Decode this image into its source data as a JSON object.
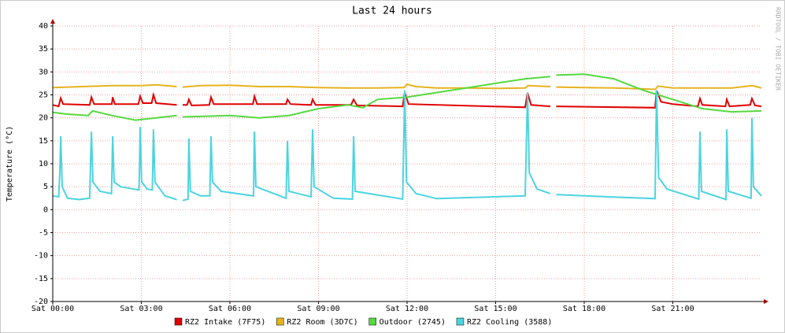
{
  "chart_data": {
    "type": "line",
    "title": "Last 24 hours",
    "y_label": "Temperature (°C)",
    "watermark": "RRDTOOL / TOBI OETIKER",
    "xlim": [
      0,
      24
    ],
    "xticks": [
      {
        "value": 0,
        "label": "Sat 00:00"
      },
      {
        "value": 3,
        "label": "Sat 03:00"
      },
      {
        "value": 6,
        "label": "Sat 06:00"
      },
      {
        "value": 9,
        "label": "Sat 09:00"
      },
      {
        "value": 12,
        "label": "Sat 12:00"
      },
      {
        "value": 15,
        "label": "Sat 15:00"
      },
      {
        "value": 18,
        "label": "Sat 18:00"
      },
      {
        "value": 21,
        "label": "Sat 21:00"
      }
    ],
    "ylim": [
      -20,
      40
    ],
    "yticks": [
      -20,
      -15,
      -10,
      -5,
      0,
      5,
      10,
      15,
      20,
      25,
      30,
      35,
      40
    ],
    "grid": true,
    "legend": "bottom",
    "series": [
      {
        "name": "RZ2 Intake (7F75)",
        "color": "#e00000",
        "x": [
          0,
          0.2,
          0.27,
          0.35,
          1.25,
          1.31,
          1.4,
          2.0,
          2.03,
          2.1,
          2.9,
          2.96,
          3.05,
          3.35,
          3.41,
          3.5,
          4.2,
          4.3,
          4.4,
          4.55,
          4.61,
          4.7,
          5.3,
          5.36,
          5.45,
          6.78,
          6.83,
          6.92,
          7.9,
          7.95,
          8.05,
          8.75,
          8.8,
          8.9,
          10.1,
          10.19,
          10.3,
          11.85,
          11.92,
          12.05,
          16.0,
          16.08,
          16.2,
          16.85,
          16.95,
          17.05,
          20.4,
          20.45,
          20.6,
          21.0,
          21.85,
          21.92,
          22.0,
          22.78,
          22.83,
          22.92,
          23.62,
          23.68,
          23.78,
          24
        ],
        "values": [
          22.8,
          22.5,
          24.3,
          23,
          22.8,
          24.5,
          23,
          23,
          24.5,
          23,
          23,
          24.7,
          23.2,
          23.2,
          25,
          23.2,
          22.8,
          null,
          22.8,
          22.8,
          24,
          22.7,
          22.8,
          24.5,
          23,
          23,
          24.7,
          23,
          23,
          24,
          23,
          22.8,
          24,
          22.8,
          22.8,
          24,
          22.7,
          22.5,
          25.5,
          23,
          22.3,
          25.5,
          22.8,
          22.5,
          null,
          22.5,
          22.2,
          26,
          23.5,
          23,
          22.5,
          24.2,
          22.8,
          22.5,
          24,
          22.5,
          22.8,
          24.2,
          22.7,
          22.5
        ]
      },
      {
        "name": "RZ2 Room (3D7C)",
        "color": "#e6b31e",
        "x": [
          0,
          1,
          2,
          3,
          3.5,
          4.2,
          4.3,
          4.4,
          5,
          6,
          7,
          8,
          9,
          10,
          11,
          11.9,
          12,
          12.3,
          13,
          14,
          15,
          16,
          16.1,
          16.85,
          16.95,
          17.05,
          18,
          19,
          20,
          20.4,
          20.5,
          21,
          22,
          23,
          23.7,
          24
        ],
        "values": [
          26.6,
          26.8,
          27,
          27,
          27.2,
          26.8,
          null,
          26.7,
          27,
          27.1,
          26.8,
          26.8,
          26.6,
          26.5,
          26.5,
          26.6,
          27.3,
          26.8,
          26.5,
          26.5,
          26.4,
          26.5,
          27,
          26.8,
          null,
          26.7,
          26.6,
          26.5,
          26.3,
          26.2,
          26.9,
          26.5,
          26.5,
          26.5,
          27,
          26.5
        ]
      },
      {
        "name": "Outdoor (2745)",
        "color": "#54d93f",
        "x": [
          0,
          0.5,
          1.2,
          1.35,
          2,
          2.8,
          3.5,
          4.2,
          4.3,
          4.4,
          5,
          6,
          7,
          8,
          9,
          10,
          10.5,
          11,
          12,
          13,
          14,
          15,
          16,
          16.85,
          16.95,
          17.05,
          18,
          19,
          20,
          20.5,
          21,
          21.5,
          22,
          23,
          24
        ],
        "values": [
          21.2,
          20.8,
          20.5,
          21.5,
          20.5,
          19.5,
          20,
          20.5,
          null,
          20.2,
          20.3,
          20.5,
          20,
          20.5,
          22,
          22.8,
          22.2,
          24,
          24.5,
          25.5,
          26.5,
          27.5,
          28.5,
          29,
          null,
          29.3,
          29.5,
          28.5,
          26,
          25,
          24,
          23,
          22,
          21.3,
          21.5
        ]
      },
      {
        "name": "RZ2 Cooling (3588)",
        "color": "#4cd4e0",
        "x": [
          0,
          0.2,
          0.24,
          0.27,
          0.32,
          0.5,
          0.9,
          1.25,
          1.28,
          1.31,
          1.36,
          1.6,
          1.99,
          2.01,
          2.03,
          2.08,
          2.3,
          2.92,
          2.94,
          2.96,
          3.01,
          3.2,
          3.37,
          3.39,
          3.41,
          3.46,
          3.8,
          4.2,
          4.3,
          4.4,
          4.58,
          4.61,
          4.66,
          5.0,
          5.32,
          5.36,
          5.41,
          5.7,
          6.8,
          6.83,
          6.88,
          7.9,
          7.95,
          8.0,
          8.75,
          8.8,
          8.85,
          9.5,
          10.15,
          10.19,
          10.24,
          11.85,
          11.92,
          11.98,
          12.3,
          13.0,
          16.0,
          16.08,
          16.14,
          16.4,
          16.85,
          16.95,
          17.05,
          18,
          20.4,
          20.45,
          20.52,
          20.8,
          21.88,
          21.92,
          21.97,
          22.8,
          22.83,
          22.88,
          23.65,
          23.68,
          23.73,
          24
        ],
        "values": [
          3,
          2.8,
          8,
          16,
          5,
          2.5,
          2.2,
          2.5,
          10,
          17,
          6,
          4,
          3.5,
          10,
          16,
          6,
          5,
          4.3,
          10,
          18,
          6,
          4.5,
          4.3,
          10,
          17.5,
          6,
          3,
          2.2,
          null,
          2,
          2.3,
          15.5,
          4,
          3,
          3,
          16,
          6,
          4,
          3,
          17,
          5,
          2.5,
          15,
          4,
          2.8,
          17.5,
          5,
          2.5,
          2.3,
          16,
          4,
          2.3,
          26,
          6,
          3.5,
          2.4,
          3,
          25.5,
          8,
          4.5,
          3.5,
          null,
          3.3,
          3,
          2.4,
          26,
          7,
          4.5,
          2.3,
          17,
          4,
          2.2,
          17.5,
          4,
          2.5,
          20,
          5,
          3
        ]
      }
    ]
  }
}
